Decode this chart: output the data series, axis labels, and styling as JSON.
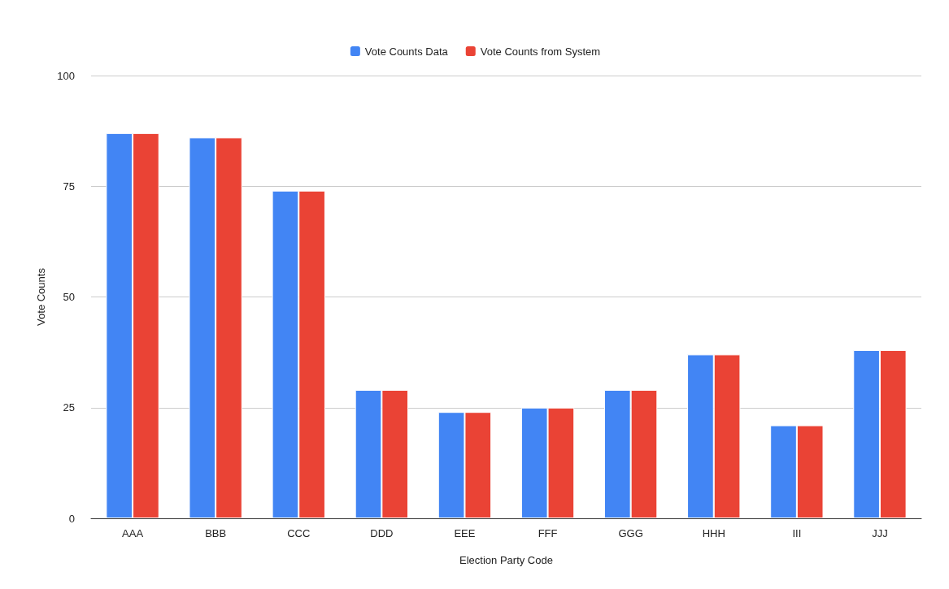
{
  "chart_data": {
    "type": "bar",
    "xlabel": "Election Party Code",
    "ylabel": "Vote Counts",
    "categories": [
      "AAA",
      "BBB",
      "CCC",
      "DDD",
      "EEE",
      "FFF",
      "GGG",
      "HHH",
      "III",
      "JJJ"
    ],
    "series": [
      {
        "name": "Vote Counts Data",
        "color": "#4285f4",
        "values": [
          87,
          86,
          74,
          29,
          24,
          25,
          29,
          37,
          21,
          38
        ]
      },
      {
        "name": "Vote Counts from System",
        "color": "#ea4335",
        "values": [
          87,
          86,
          74,
          29,
          24,
          25,
          29,
          37,
          21,
          38
        ]
      }
    ],
    "ylim": [
      0,
      100
    ],
    "yticks": [
      0,
      25,
      50,
      75,
      100
    ],
    "grid": "y",
    "legend": "top"
  }
}
